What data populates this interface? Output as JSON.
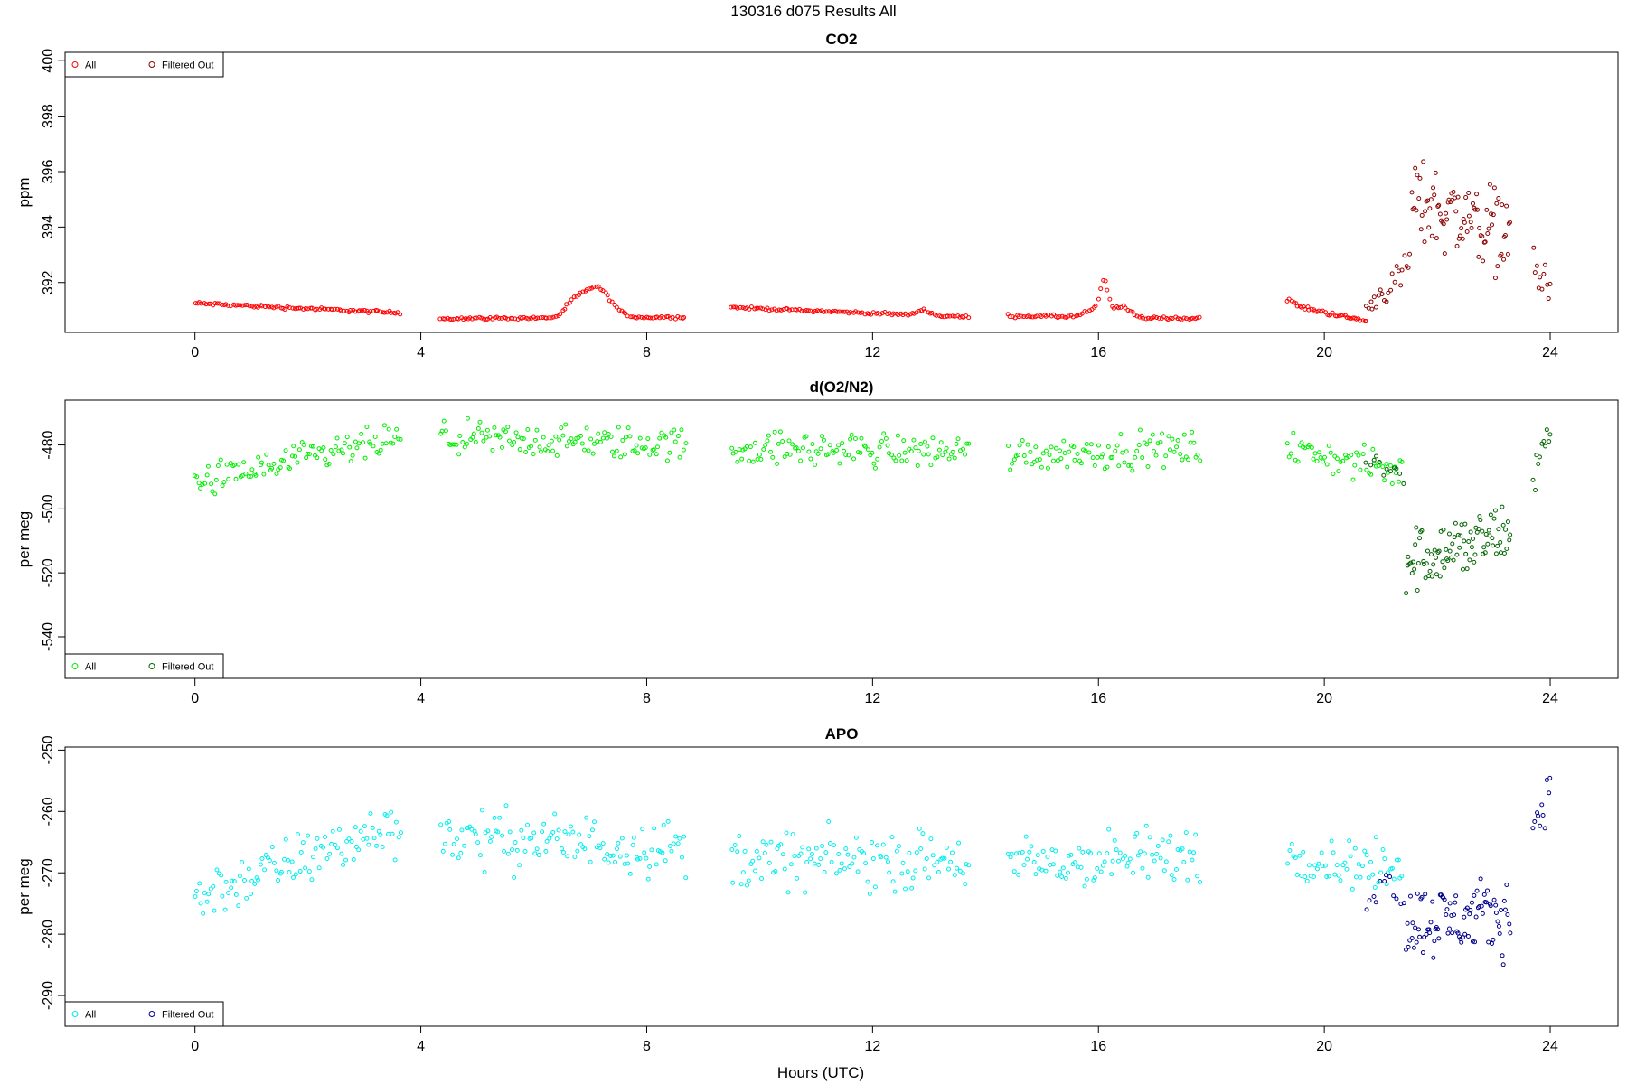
{
  "figure": {
    "supertitle": "130316   d075   Results All",
    "xlabel": "Hours (UTC)"
  },
  "chart_data": [
    {
      "type": "scatter",
      "title": "CO2",
      "ylabel": "ppm",
      "xlim": [
        -2.3,
        25.2
      ],
      "ylim": [
        390.2,
        400.3
      ],
      "xticks": [
        0,
        4,
        8,
        12,
        16,
        20,
        24
      ],
      "yticks": [
        392,
        394,
        396,
        398,
        400
      ],
      "legend_position": "top-left",
      "legend": [
        "All",
        "Filtered Out"
      ],
      "colors": {
        "all": "#ff0000",
        "filtered": "#8b0000"
      },
      "segments": [
        {
          "x0": 0.0,
          "x1": 3.65,
          "step": 0.04,
          "y0": 391.25,
          "y1": 390.9,
          "noise": 0.05,
          "bumps": []
        },
        {
          "x0": 4.35,
          "x1": 8.7,
          "step": 0.04,
          "y0": 390.7,
          "y1": 390.75,
          "noise": 0.04,
          "bumps": [
            {
              "c": 7.1,
              "w": 0.35,
              "h": 1.1
            },
            {
              "c": 6.7,
              "w": 0.2,
              "h": 0.4
            }
          ]
        },
        {
          "x0": 9.5,
          "x1": 13.7,
          "step": 0.04,
          "y0": 391.1,
          "y1": 390.75,
          "noise": 0.04,
          "bumps": [
            {
              "c": 12.9,
              "w": 0.15,
              "h": 0.2
            }
          ]
        },
        {
          "x0": 14.4,
          "x1": 17.8,
          "step": 0.04,
          "y0": 390.8,
          "y1": 390.7,
          "noise": 0.05,
          "bumps": [
            {
              "c": 16.1,
              "w": 0.1,
              "h": 1.2
            },
            {
              "c": 16.4,
              "w": 0.2,
              "h": 0.4
            },
            {
              "c": 15.9,
              "w": 0.2,
              "h": 0.25
            }
          ]
        },
        {
          "x0": 19.35,
          "x1": 20.75,
          "step": 0.035,
          "y0": 391.2,
          "y1": 390.6,
          "noise": 0.06,
          "bumps": [
            {
              "c": 19.35,
              "w": 0.15,
              "h": 0.2
            }
          ]
        }
      ],
      "filtered_segments": [
        {
          "x0": 20.75,
          "x1": 21.55,
          "step": 0.035,
          "y0": 391.0,
          "y1": 392.8,
          "noise": 0.45
        },
        {
          "x0": 21.55,
          "x1": 23.3,
          "step": 0.02,
          "y0": 395.0,
          "y1": 393.8,
          "noise": 1.3
        },
        {
          "x0": 23.7,
          "x1": 24.0,
          "step": 0.03,
          "y0": 392.5,
          "y1": 391.8,
          "noise": 0.8
        }
      ]
    },
    {
      "type": "scatter",
      "title": "d(O2/N2)",
      "ylabel": "per meg",
      "xlim": [
        -2.3,
        25.2
      ],
      "ylim": [
        -553,
        -466
      ],
      "xticks": [
        0,
        4,
        8,
        12,
        16,
        20,
        24
      ],
      "yticks": [
        -480,
        -500,
        -520,
        -540
      ],
      "legend_position": "bottom-left",
      "legend": [
        "All",
        "Filtered Out"
      ],
      "colors": {
        "all": "#00ee00",
        "filtered": "#006400"
      },
      "segments": [
        {
          "x0": 0.0,
          "x1": 3.65,
          "step": 0.035,
          "y0": -492,
          "y1": -478,
          "noise": 4.5,
          "bumps": []
        },
        {
          "x0": 4.35,
          "x1": 8.7,
          "step": 0.035,
          "y0": -478,
          "y1": -480,
          "noise": 4.5,
          "bumps": []
        },
        {
          "x0": 9.5,
          "x1": 13.7,
          "step": 0.035,
          "y0": -481,
          "y1": -482,
          "noise": 4.5,
          "bumps": []
        },
        {
          "x0": 14.4,
          "x1": 17.8,
          "step": 0.035,
          "y0": -483,
          "y1": -481,
          "noise": 4.5,
          "bumps": []
        },
        {
          "x0": 19.35,
          "x1": 21.4,
          "step": 0.035,
          "y0": -481,
          "y1": -489,
          "noise": 4.5,
          "bumps": []
        }
      ],
      "filtered_segments": [
        {
          "x0": 20.75,
          "x1": 21.45,
          "step": 0.06,
          "y0": -483,
          "y1": -490,
          "noise": 4
        },
        {
          "x0": 21.45,
          "x1": 23.3,
          "step": 0.02,
          "y0": -516,
          "y1": -508,
          "noise": 9
        },
        {
          "x0": 23.7,
          "x1": 24.0,
          "step": 0.03,
          "y0": -488,
          "y1": -476,
          "noise": 6
        }
      ]
    },
    {
      "type": "scatter",
      "title": "APO",
      "ylabel": "per meg",
      "xlim": [
        -2.3,
        25.2
      ],
      "ylim": [
        -295,
        -249.5
      ],
      "xticks": [
        0,
        4,
        8,
        12,
        16,
        20,
        24
      ],
      "yticks": [
        -250,
        -260,
        -270,
        -280,
        -290
      ],
      "legend_position": "bottom-left",
      "legend": [
        "All",
        "Filtered Out"
      ],
      "colors": {
        "all": "#00eeee",
        "filtered": "#00008b"
      },
      "segments": [
        {
          "x0": 0.0,
          "x1": 3.65,
          "step": 0.035,
          "y0": -274,
          "y1": -262,
          "noise": 3.8,
          "bumps": []
        },
        {
          "x0": 4.35,
          "x1": 8.7,
          "step": 0.035,
          "y0": -264,
          "y1": -266,
          "noise": 4.0,
          "bumps": []
        },
        {
          "x0": 9.5,
          "x1": 13.7,
          "step": 0.035,
          "y0": -268,
          "y1": -268,
          "noise": 4.0,
          "bumps": []
        },
        {
          "x0": 14.4,
          "x1": 17.8,
          "step": 0.035,
          "y0": -269,
          "y1": -267,
          "noise": 4.0,
          "bumps": []
        },
        {
          "x0": 19.35,
          "x1": 21.4,
          "step": 0.035,
          "y0": -267,
          "y1": -270,
          "noise": 3.5,
          "bumps": []
        }
      ],
      "filtered_segments": [
        {
          "x0": 20.75,
          "x1": 21.45,
          "step": 0.06,
          "y0": -272,
          "y1": -273,
          "noise": 4
        },
        {
          "x0": 21.45,
          "x1": 23.3,
          "step": 0.02,
          "y0": -278,
          "y1": -277,
          "noise": 5
        },
        {
          "x0": 23.7,
          "x1": 24.0,
          "step": 0.03,
          "y0": -262,
          "y1": -257,
          "noise": 3
        }
      ]
    }
  ]
}
